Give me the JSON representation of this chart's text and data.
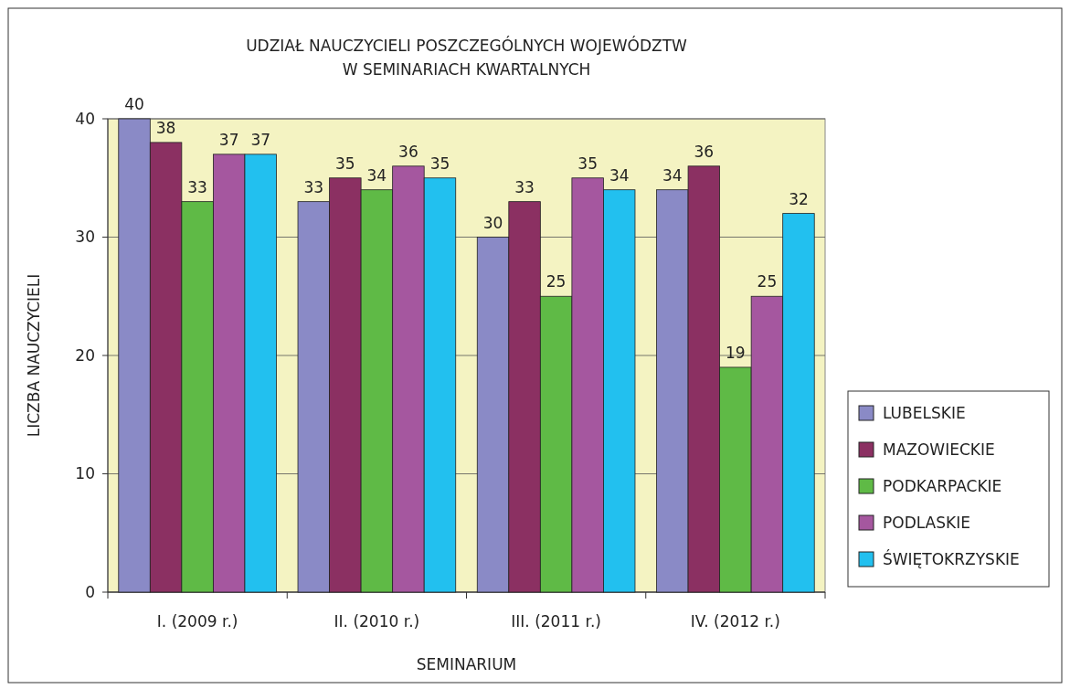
{
  "chart_data": {
    "type": "bar",
    "title": "UDZIAŁ NAUCZYCIELI POSZCZEGÓLNYCH WOJEWÓDZTW\nW SEMINARIACH KWARTALNYCH",
    "xlabel": "SEMINARIUM",
    "ylabel": "LICZBA NAUCZYCIELI",
    "categories": [
      "I. (2009 r.)",
      "II. (2010 r.)",
      "III. (2011 r.)",
      "IV. (2012 r.)"
    ],
    "series": [
      {
        "name": "LUBELSKIE",
        "color": "#8a8ac6",
        "values": [
          40,
          33,
          30,
          34
        ]
      },
      {
        "name": "MAZOWIECKIE",
        "color": "#8b3062",
        "values": [
          38,
          35,
          33,
          36
        ]
      },
      {
        "name": "PODKARPACKIE",
        "color": "#5fba46",
        "values": [
          33,
          34,
          25,
          19
        ]
      },
      {
        "name": "PODLASKIE",
        "color": "#a5579f",
        "values": [
          37,
          36,
          35,
          25
        ]
      },
      {
        "name": "ŚWIĘTOKRZYSKIE",
        "color": "#22c0ef",
        "values": [
          37,
          35,
          34,
          32
        ]
      }
    ],
    "ylim": [
      0,
      40
    ],
    "yticks": [
      0,
      10,
      20,
      30,
      40
    ],
    "grid": "y",
    "legend": "right",
    "data_labels": true
  }
}
